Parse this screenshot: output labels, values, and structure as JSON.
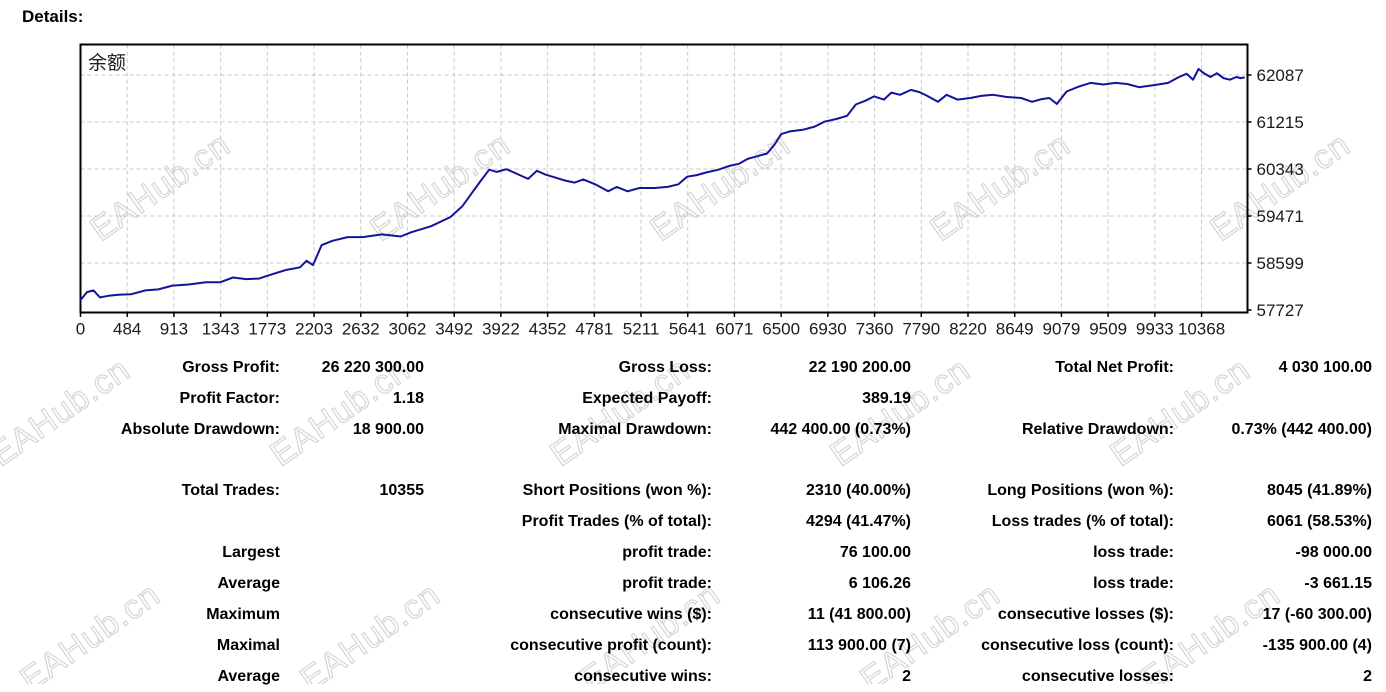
{
  "header": {
    "title": "Details:"
  },
  "watermark": {
    "text": "EAHub.cn"
  },
  "chart_data": {
    "type": "line",
    "title": "",
    "legend": "余额",
    "line_color": "#14149B",
    "grid_color": "#c8c8c8",
    "axis_text_color": "#1a1a1a",
    "xlabel": "",
    "ylabel": "",
    "x_ticks": [
      0,
      484,
      913,
      1343,
      1773,
      2203,
      2632,
      3062,
      3492,
      3922,
      4352,
      4781,
      5211,
      5641,
      6071,
      6500,
      6930,
      7360,
      7790,
      8220,
      8649,
      9079,
      9509,
      9933,
      10368
    ],
    "y_ticks": [
      62087,
      61215,
      60343,
      59471,
      58599,
      57727
    ],
    "ylim": [
      57727,
      62300
    ],
    "series": [
      {
        "name": "余额",
        "points": [
          [
            0,
            57910
          ],
          [
            60,
            58060
          ],
          [
            120,
            58090
          ],
          [
            180,
            57960
          ],
          [
            260,
            57990
          ],
          [
            350,
            58010
          ],
          [
            470,
            58020
          ],
          [
            600,
            58090
          ],
          [
            720,
            58110
          ],
          [
            850,
            58180
          ],
          [
            1000,
            58200
          ],
          [
            1160,
            58240
          ],
          [
            1290,
            58240
          ],
          [
            1410,
            58330
          ],
          [
            1530,
            58300
          ],
          [
            1650,
            58310
          ],
          [
            1770,
            58390
          ],
          [
            1900,
            58470
          ],
          [
            2030,
            58520
          ],
          [
            2090,
            58640
          ],
          [
            2150,
            58560
          ],
          [
            2230,
            58930
          ],
          [
            2330,
            59010
          ],
          [
            2470,
            59080
          ],
          [
            2610,
            59080
          ],
          [
            2790,
            59130
          ],
          [
            2960,
            59090
          ],
          [
            3060,
            59170
          ],
          [
            3240,
            59280
          ],
          [
            3420,
            59450
          ],
          [
            3530,
            59650
          ],
          [
            3620,
            59900
          ],
          [
            3700,
            60120
          ],
          [
            3780,
            60330
          ],
          [
            3850,
            60290
          ],
          [
            3940,
            60340
          ],
          [
            4040,
            60250
          ],
          [
            4140,
            60160
          ],
          [
            4220,
            60310
          ],
          [
            4300,
            60240
          ],
          [
            4380,
            60190
          ],
          [
            4480,
            60130
          ],
          [
            4570,
            60090
          ],
          [
            4650,
            60150
          ],
          [
            4760,
            60060
          ],
          [
            4880,
            59930
          ],
          [
            4960,
            60010
          ],
          [
            5060,
            59930
          ],
          [
            5170,
            59990
          ],
          [
            5310,
            59990
          ],
          [
            5430,
            60010
          ],
          [
            5530,
            60060
          ],
          [
            5610,
            60200
          ],
          [
            5700,
            60230
          ],
          [
            5790,
            60280
          ],
          [
            5900,
            60330
          ],
          [
            6000,
            60400
          ],
          [
            6090,
            60440
          ],
          [
            6170,
            60530
          ],
          [
            6260,
            60580
          ],
          [
            6350,
            60630
          ],
          [
            6420,
            60800
          ],
          [
            6480,
            60990
          ],
          [
            6560,
            61040
          ],
          [
            6680,
            61070
          ],
          [
            6790,
            61130
          ],
          [
            6880,
            61220
          ],
          [
            6990,
            61270
          ],
          [
            7090,
            61330
          ],
          [
            7170,
            61540
          ],
          [
            7260,
            61610
          ],
          [
            7340,
            61690
          ],
          [
            7430,
            61630
          ],
          [
            7500,
            61760
          ],
          [
            7580,
            61720
          ],
          [
            7680,
            61810
          ],
          [
            7760,
            61770
          ],
          [
            7840,
            61690
          ],
          [
            7930,
            61590
          ],
          [
            8010,
            61720
          ],
          [
            8110,
            61630
          ],
          [
            8230,
            61660
          ],
          [
            8330,
            61700
          ],
          [
            8440,
            61720
          ],
          [
            8560,
            61680
          ],
          [
            8700,
            61660
          ],
          [
            8800,
            61590
          ],
          [
            8890,
            61640
          ],
          [
            8960,
            61660
          ],
          [
            9030,
            61550
          ],
          [
            9120,
            61780
          ],
          [
            9230,
            61870
          ],
          [
            9340,
            61940
          ],
          [
            9460,
            61910
          ],
          [
            9570,
            61940
          ],
          [
            9680,
            61920
          ],
          [
            9790,
            61860
          ],
          [
            9930,
            61900
          ],
          [
            10060,
            61940
          ],
          [
            10160,
            62050
          ],
          [
            10230,
            62110
          ],
          [
            10290,
            62000
          ],
          [
            10340,
            62200
          ],
          [
            10390,
            62120
          ],
          [
            10450,
            62050
          ],
          [
            10510,
            62120
          ],
          [
            10570,
            62030
          ],
          [
            10630,
            62000
          ],
          [
            10690,
            62050
          ],
          [
            10730,
            62030
          ],
          [
            10760,
            62040
          ]
        ]
      }
    ]
  },
  "stats": {
    "rows": [
      {
        "l1": "Gross Profit:",
        "v1": "26 220 300.00",
        "l2": "Gross Loss:",
        "v2": "22 190 200.00",
        "l3": "Total Net Profit:",
        "v3": "4 030 100.00"
      },
      {
        "l1": "Profit Factor:",
        "v1": "1.18",
        "l2": "Expected Payoff:",
        "v2": "389.19",
        "l3": "",
        "v3": ""
      },
      {
        "l1": "Absolute Drawdown:",
        "v1": "18 900.00",
        "l2": "Maximal Drawdown:",
        "v2": "442 400.00 (0.73%)",
        "l3": "Relative Drawdown:",
        "v3": "0.73% (442 400.00)"
      },
      {
        "l1": "Total Trades:",
        "v1": "10355",
        "l2": "Short Positions (won %):",
        "v2": "2310 (40.00%)",
        "l3": "Long Positions (won %):",
        "v3": "8045 (41.89%)"
      },
      {
        "l1": "",
        "v1": "",
        "l2": "Profit Trades (% of total):",
        "v2": "4294 (41.47%)",
        "l3": "Loss trades (% of total):",
        "v3": "6061 (58.53%)"
      },
      {
        "l1": "Largest",
        "v1": "",
        "l2": "profit trade:",
        "v2": "76 100.00",
        "l3": "loss trade:",
        "v3": "-98 000.00"
      },
      {
        "l1": "Average",
        "v1": "",
        "l2": "profit trade:",
        "v2": "6 106.26",
        "l3": "loss trade:",
        "v3": "-3 661.15"
      },
      {
        "l1": "Maximum",
        "v1": "",
        "l2": "consecutive wins ($):",
        "v2": "11 (41 800.00)",
        "l3": "consecutive losses ($):",
        "v3": "17 (-60 300.00)"
      },
      {
        "l1": "Maximal",
        "v1": "",
        "l2": "consecutive profit (count):",
        "v2": "113 900.00 (7)",
        "l3": "consecutive loss (count):",
        "v3": "-135 900.00 (4)"
      },
      {
        "l1": "Average",
        "v1": "",
        "l2": "consecutive wins:",
        "v2": "2",
        "l3": "consecutive losses:",
        "v3": "2"
      }
    ]
  }
}
